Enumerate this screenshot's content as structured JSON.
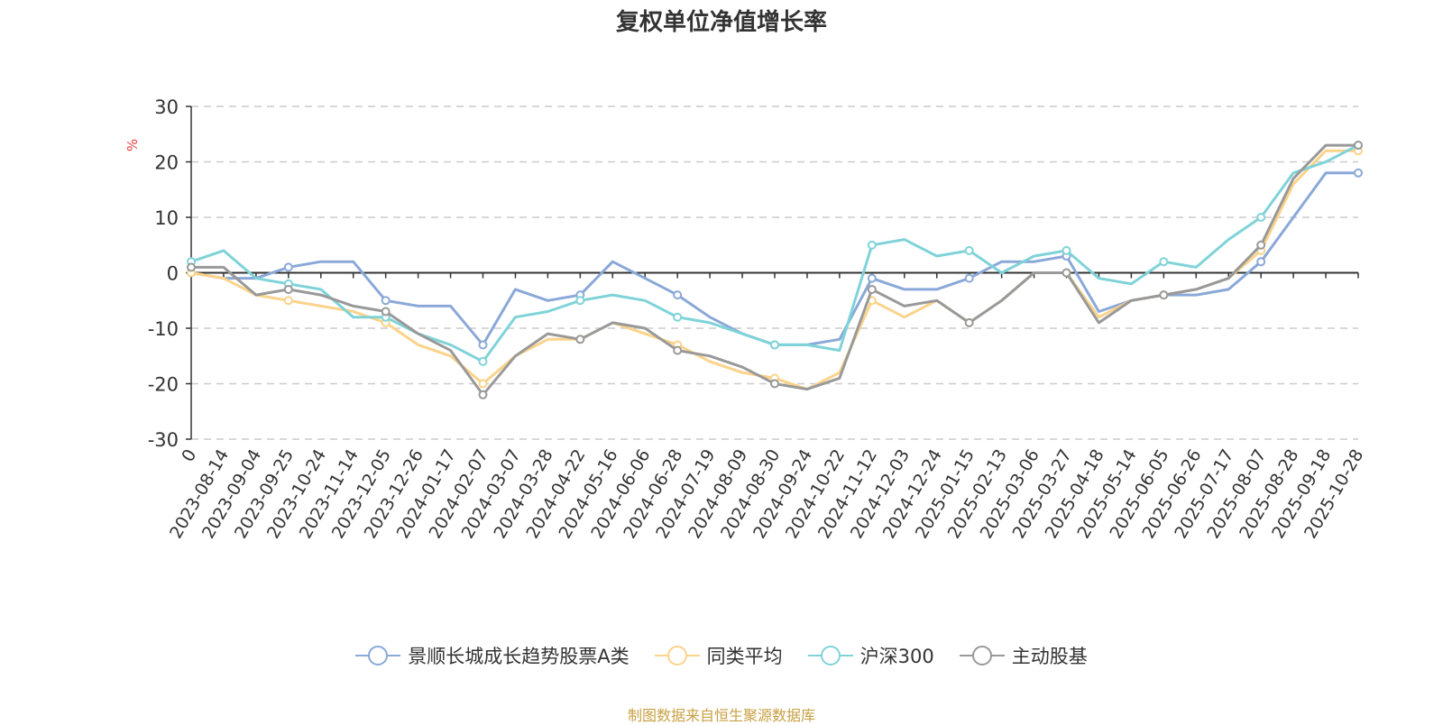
{
  "chart_data": {
    "type": "line",
    "title": "复权单位净值增长率",
    "y_unit": "%",
    "ylim": [
      -30,
      30
    ],
    "y_ticks": [
      30,
      20,
      10,
      0,
      -10,
      -20,
      -30
    ],
    "grid": true,
    "legend_position": "bottom",
    "x": [
      "0",
      "2023-08-14",
      "2023-09-04",
      "2023-09-25",
      "2023-10-24",
      "2023-11-14",
      "2023-12-05",
      "2023-12-26",
      "2024-01-17",
      "2024-02-07",
      "2024-03-07",
      "2024-03-28",
      "2024-04-22",
      "2024-05-16",
      "2024-06-06",
      "2024-06-28",
      "2024-07-19",
      "2024-08-09",
      "2024-08-30",
      "2024-09-24",
      "2024-10-22",
      "2024-11-12",
      "2024-12-03",
      "2024-12-24",
      "2025-01-15",
      "2025-02-13",
      "2025-03-06",
      "2025-03-27",
      "2025-04-18",
      "2025-05-14",
      "2025-06-05",
      "2025-06-26",
      "2025-07-17",
      "2025-08-07",
      "2025-08-28",
      "2025-09-18",
      "2025-10-28"
    ],
    "series": [
      {
        "name": "景顺长城成长趋势股票A类",
        "color": "#8aa8d8",
        "values": [
          0,
          -1,
          -1,
          1,
          2,
          2,
          -5,
          -6,
          -6,
          -13,
          -3,
          -5,
          -4,
          2,
          -1,
          -4,
          -8,
          -11,
          -13,
          -13,
          -12,
          -1,
          -3,
          -3,
          -1,
          2,
          2,
          3,
          -7,
          -5,
          -4,
          -4,
          -3,
          2,
          10,
          18,
          18
        ]
      },
      {
        "name": "同类平均",
        "color": "#fbd38a",
        "values": [
          0,
          -1,
          -4,
          -5,
          -6,
          -7,
          -9,
          -13,
          -15,
          -20,
          -15,
          -12,
          -12,
          -9,
          -11,
          -13,
          -16,
          -18,
          -19,
          -21,
          -18,
          -5,
          -8,
          -5,
          -9,
          -5,
          0,
          0,
          -8,
          -5,
          -4,
          -3,
          -1,
          4,
          16,
          22,
          22
        ]
      },
      {
        "name": "沪深300",
        "color": "#7fd3d8",
        "values": [
          2,
          4,
          -1,
          -2,
          -3,
          -8,
          -8,
          -11,
          -13,
          -16,
          -8,
          -7,
          -5,
          -4,
          -5,
          -8,
          -9,
          -11,
          -13,
          -13,
          -14,
          5,
          6,
          3,
          4,
          0,
          3,
          4,
          -1,
          -2,
          2,
          1,
          6,
          10,
          18,
          20,
          23
        ]
      },
      {
        "name": "主动股基",
        "color": "#999999",
        "values": [
          1,
          1,
          -4,
          -3,
          -4,
          -6,
          -7,
          -11,
          -14,
          -22,
          -15,
          -11,
          -12,
          -9,
          -10,
          -14,
          -15,
          -17,
          -20,
          -21,
          -19,
          -3,
          -6,
          -5,
          -9,
          -5,
          0,
          0,
          -9,
          -5,
          -4,
          -3,
          -1,
          5,
          17,
          23,
          23
        ]
      }
    ]
  },
  "source_note": "制图数据来自恒生聚源数据库"
}
